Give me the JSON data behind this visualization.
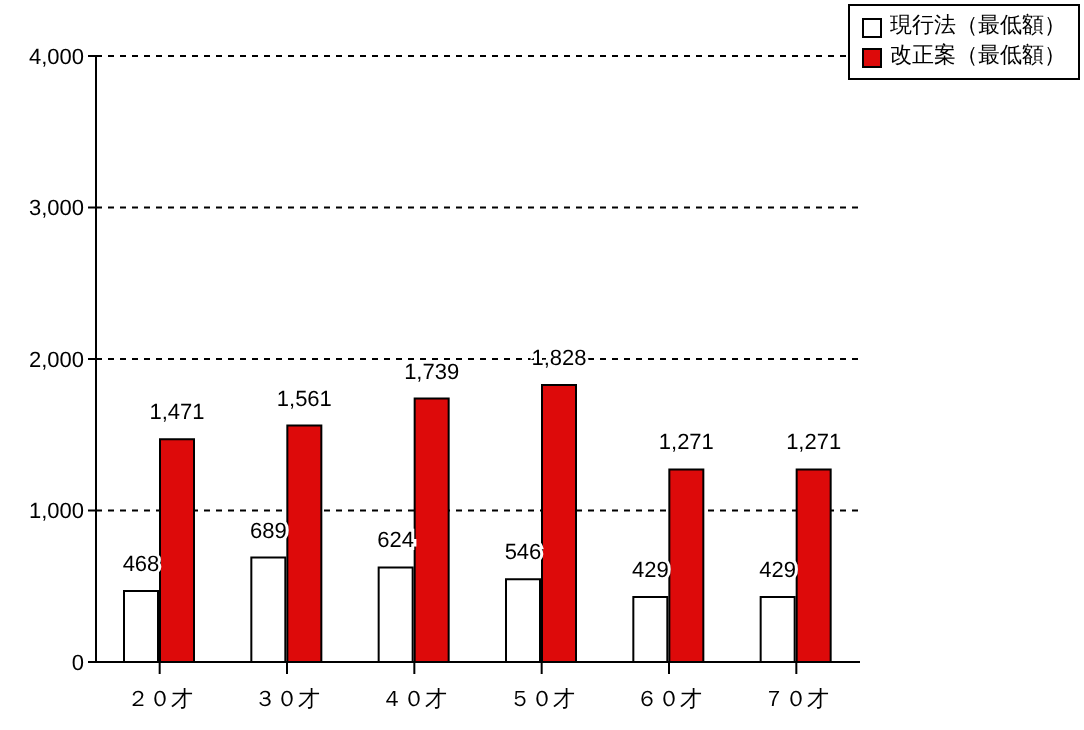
{
  "chart_data": {
    "type": "bar",
    "categories": [
      "２０才",
      "３０才",
      "４０才",
      "５０才",
      "６０才",
      "７０才"
    ],
    "series": [
      {
        "name": "現行法（最低額）",
        "color": "#ffffff",
        "values": [
          468,
          689,
          624,
          546,
          429,
          429
        ],
        "value_labels": [
          "468",
          "689",
          "624",
          "546",
          "429",
          "429"
        ]
      },
      {
        "name": "改正案（最低額）",
        "color": "#dd0a0a",
        "values": [
          1471,
          1561,
          1739,
          1828,
          1271,
          1271
        ],
        "value_labels": [
          "1,471",
          "1,561",
          "1,739",
          "1,828",
          "1,271",
          "1,271"
        ]
      }
    ],
    "ylim": [
      0,
      4000
    ],
    "yticks": [
      {
        "value": 0,
        "label": "0"
      },
      {
        "value": 1000,
        "label": "1,000"
      },
      {
        "value": 2000,
        "label": "2,000"
      },
      {
        "value": 3000,
        "label": "3,000"
      },
      {
        "value": 4000,
        "label": "4,000"
      }
    ],
    "grid": "y",
    "legend": "top right"
  }
}
